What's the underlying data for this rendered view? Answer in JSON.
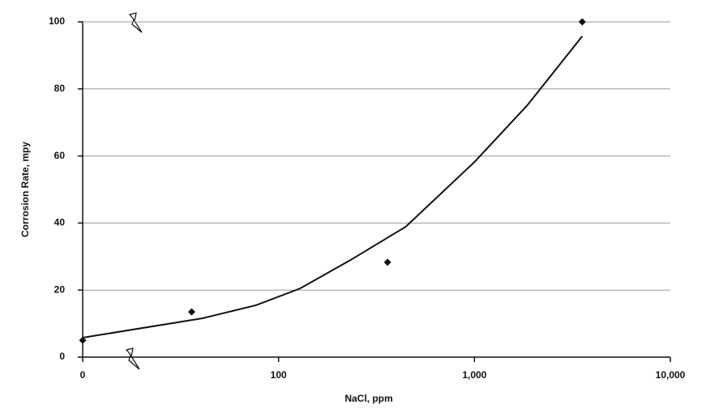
{
  "chart_data": {
    "type": "scatter",
    "x_label": "NaCl, ppm",
    "y_label": "Corrosion Rate, mpy",
    "x_scale": "log",
    "x_break": true,
    "xlim": [
      0,
      10000
    ],
    "xticks": [
      0,
      100,
      {
        "value": 1000,
        "label": "1,000"
      },
      {
        "value": 10000,
        "label": "10,000"
      }
    ],
    "ylim": [
      0,
      100
    ],
    "yticks": [
      0,
      20,
      40,
      60,
      80,
      100
    ],
    "grid": true,
    "series": [
      {
        "mode": "markers",
        "color": "#111111",
        "x": [
          0,
          36,
          360,
          3550
        ],
        "values": [
          5,
          13.5,
          28.3,
          100
        ]
      },
      {
        "mode": "line",
        "color": "#111111",
        "x": [
          0,
          41,
          77,
          129,
          229,
          446,
          1000,
          1860,
          3550
        ],
        "values": [
          5.8,
          11.6,
          15.5,
          20.5,
          28.7,
          38.9,
          58.2,
          75.1,
          95.7
        ]
      }
    ]
  }
}
